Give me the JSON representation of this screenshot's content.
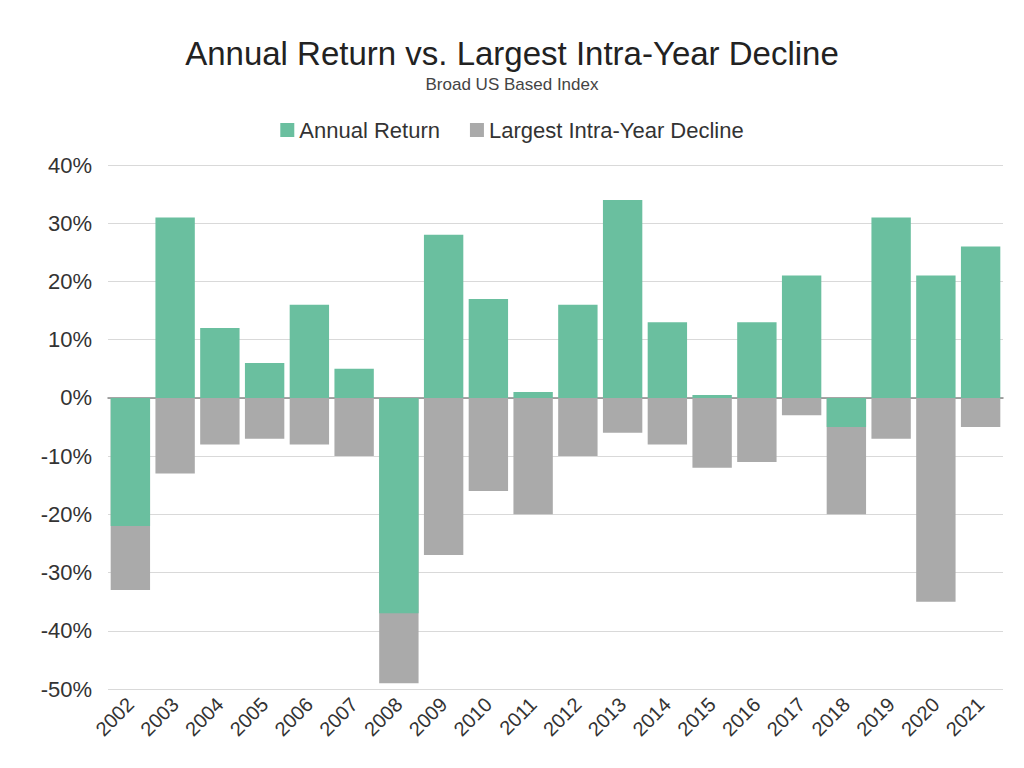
{
  "chart_data": {
    "type": "bar",
    "title": "Annual Return vs. Largest Intra-Year Decline",
    "subtitle": "Broad US Based Index",
    "categories": [
      "2002",
      "2003",
      "2004",
      "2005",
      "2006",
      "2007",
      "2008",
      "2009",
      "2010",
      "2011",
      "2012",
      "2013",
      "2014",
      "2015",
      "2016",
      "2017",
      "2018",
      "2019",
      "2020",
      "2021"
    ],
    "series": [
      {
        "name": "Annual Return",
        "color": "#6abf9f",
        "values": [
          -22,
          31,
          12,
          6,
          16,
          5,
          -37,
          28,
          17,
          1,
          16,
          34,
          13,
          0.5,
          13,
          21,
          -5,
          31,
          21,
          26
        ]
      },
      {
        "name": "Largest Intra-Year Decline",
        "color": "#aaaaaa",
        "values": [
          -33,
          -13,
          -8,
          -7,
          -8,
          -10,
          -49,
          -27,
          -16,
          -20,
          -10,
          -6,
          -8,
          -12,
          -11,
          -3,
          -20,
          -7,
          -35,
          -5
        ]
      }
    ],
    "ylim": [
      -50,
      40
    ],
    "yticks": [
      {
        "value": -50,
        "label": "-50%"
      },
      {
        "value": -40,
        "label": "-40%"
      },
      {
        "value": -30,
        "label": "-30%"
      },
      {
        "value": -20,
        "label": "-20%"
      },
      {
        "value": -10,
        "label": "-10%"
      },
      {
        "value": 0,
        "label": "0%"
      },
      {
        "value": 10,
        "label": "10%"
      },
      {
        "value": 20,
        "label": "20%"
      },
      {
        "value": 30,
        "label": "30%"
      },
      {
        "value": 40,
        "label": "40%"
      }
    ],
    "grid": true,
    "legend": "top"
  }
}
